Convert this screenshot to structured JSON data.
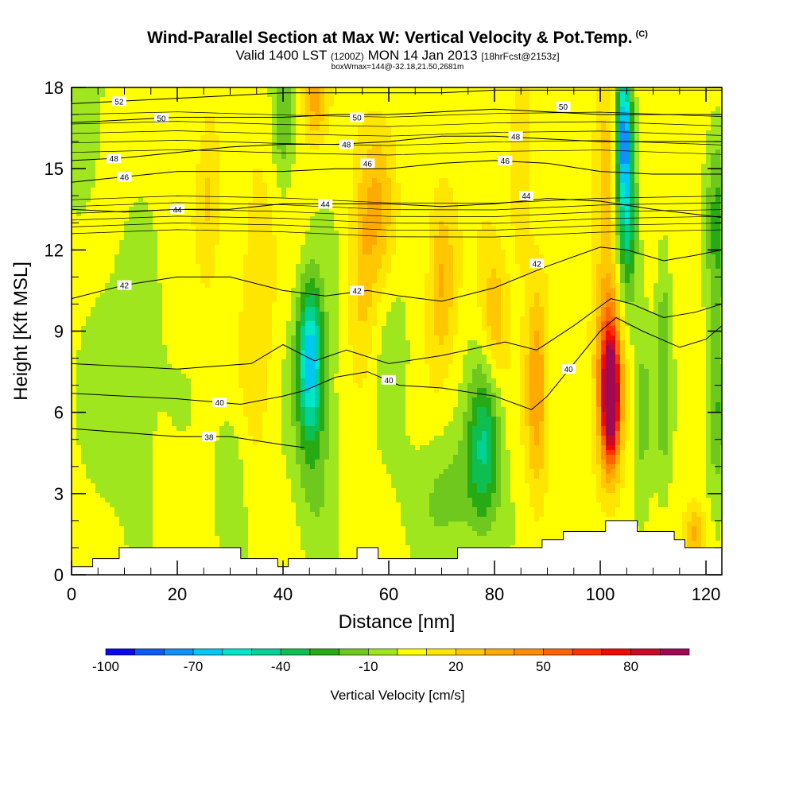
{
  "header": {
    "title": "Wind-Parallel Section at Max W: Vertical Velocity & Pot.Temp.",
    "title_mark": "(C)",
    "subtitle_main_a": "Valid 1400 LST",
    "subtitle_small_a": "(1200Z)",
    "subtitle_main_b": "MON 14 Jan 2013",
    "subtitle_small_b": "[18hrFcst@2153z]",
    "subsubtitle": "boxWmax=144@-32.18,21.50,2681m"
  },
  "chart_data": {
    "type": "heatmap",
    "xlabel": "Distance [nm]",
    "ylabel": "Height [Kft MSL]",
    "xlim": [
      0,
      123
    ],
    "ylim": [
      0,
      18
    ],
    "x_ticks": [
      "0",
      "20",
      "40",
      "60",
      "80",
      "100",
      "120"
    ],
    "y_ticks": [
      "0",
      "3",
      "6",
      "9",
      "12",
      "15",
      "18"
    ],
    "colorbar": {
      "label": "Vertical Velocity [cm/s]",
      "tick_labels": [
        "-100",
        "-70",
        "-40",
        "-10",
        "20",
        "50",
        "80"
      ],
      "levels": [
        -100,
        -90,
        -80,
        -70,
        -60,
        -50,
        -40,
        -30,
        -20,
        -10,
        0,
        10,
        20,
        30,
        40,
        50,
        60,
        70,
        80,
        90,
        100
      ],
      "colors": [
        "#0a0af0",
        "#0f5cf5",
        "#1190f5",
        "#00c8f0",
        "#00e6c8",
        "#00d296",
        "#0fbe50",
        "#28aa14",
        "#6ec81e",
        "#a0e61e",
        "#ffff00",
        "#ffe600",
        "#ffc800",
        "#ffaa00",
        "#ff8c00",
        "#ff6400",
        "#ff3200",
        "#f00a00",
        "#c80a28",
        "#a00a55"
      ]
    },
    "velocity_features": [
      {
        "x": 45,
        "z": 8,
        "sx": 2.2,
        "sz": 2.6,
        "w": -55
      },
      {
        "x": 46,
        "z": 6,
        "sx": 4,
        "sz": 5,
        "w": -25
      },
      {
        "x": 10,
        "z": 7,
        "sx": 8,
        "sz": 5,
        "w": -14
      },
      {
        "x": 30,
        "z": 3.5,
        "sx": 3,
        "sz": 3,
        "w": -14
      },
      {
        "x": 61,
        "z": 8,
        "sx": 3,
        "sz": 3,
        "w": -12
      },
      {
        "x": 78,
        "z": 5,
        "sx": 3,
        "sz": 3,
        "w": -38
      },
      {
        "x": 72,
        "z": 3,
        "sx": 9,
        "sz": 2.5,
        "w": -18
      },
      {
        "x": 104.5,
        "z": 16.5,
        "sx": 1.5,
        "sz": 2.5,
        "w": -75
      },
      {
        "x": 105,
        "z": 13,
        "sx": 1.8,
        "sz": 3,
        "w": -45
      },
      {
        "x": 108,
        "z": 6,
        "sx": 2,
        "sz": 4,
        "w": -18
      },
      {
        "x": 112,
        "z": 8,
        "sx": 1.5,
        "sz": 5,
        "w": -22
      },
      {
        "x": 122,
        "z": 13,
        "sx": 2,
        "sz": 4,
        "w": -25
      },
      {
        "x": 122,
        "z": 6,
        "sx": 2,
        "sz": 3,
        "w": -28
      },
      {
        "x": 40,
        "z": 17,
        "sx": 2,
        "sz": 3,
        "w": -22
      },
      {
        "x": 2,
        "z": 16,
        "sx": 3,
        "sz": 3,
        "w": -14
      },
      {
        "x": 102,
        "z": 6.5,
        "sx": 1.6,
        "sz": 2.2,
        "w": 95
      },
      {
        "x": 101.5,
        "z": 8,
        "sx": 2.5,
        "sz": 4,
        "w": 45
      },
      {
        "x": 88,
        "z": 7,
        "sx": 2,
        "sz": 4,
        "w": 32
      },
      {
        "x": 80,
        "z": 9.5,
        "sx": 2.5,
        "sz": 2.5,
        "w": 24
      },
      {
        "x": 70,
        "z": 11,
        "sx": 2.5,
        "sz": 3,
        "w": 28
      },
      {
        "x": 58,
        "z": 14,
        "sx": 3,
        "sz": 3,
        "w": 22
      },
      {
        "x": 55,
        "z": 11,
        "sx": 2.5,
        "sz": 4,
        "w": 18
      },
      {
        "x": 35,
        "z": 10,
        "sx": 3,
        "sz": 5,
        "w": 15
      },
      {
        "x": 26,
        "z": 14,
        "sx": 2,
        "sz": 3,
        "w": 15
      },
      {
        "x": 46,
        "z": 17.5,
        "sx": 2,
        "sz": 1.5,
        "w": 28
      },
      {
        "x": 101,
        "z": 15,
        "sx": 2,
        "sz": 3,
        "w": 20
      },
      {
        "x": 85,
        "z": 14,
        "sx": 2,
        "sz": 3,
        "w": 16
      },
      {
        "x": 118,
        "z": 1.5,
        "sx": 2,
        "sz": 1,
        "w": 28
      }
    ],
    "theta_contours": [
      {
        "label": "38",
        "label_x": 26,
        "pts": [
          [
            0,
            5.4
          ],
          [
            20,
            5.1
          ],
          [
            30,
            5.1
          ],
          [
            40,
            4.8
          ],
          [
            44,
            4.7
          ]
        ]
      },
      {
        "label": "40",
        "label_x": 28,
        "pts": [
          [
            0,
            6.7
          ],
          [
            20,
            6.5
          ],
          [
            32,
            6.3
          ],
          [
            40,
            6.6
          ],
          [
            44,
            6.8
          ],
          [
            50,
            7.3
          ],
          [
            56,
            7.5
          ],
          [
            62,
            7.0
          ],
          [
            70,
            6.9
          ],
          [
            80,
            6.6
          ],
          [
            87,
            6.1
          ],
          [
            90,
            6.6
          ],
          [
            95,
            7.8
          ],
          [
            100,
            9.0
          ],
          [
            103,
            9.5
          ],
          [
            108,
            9.0
          ],
          [
            115,
            8.4
          ],
          [
            120,
            8.7
          ],
          [
            123,
            9.2
          ]
        ]
      },
      {
        "label": "",
        "label_x": -1,
        "pts": [
          [
            0,
            7.8
          ],
          [
            20,
            7.6
          ],
          [
            34,
            7.8
          ],
          [
            40,
            8.5
          ],
          [
            46,
            7.9
          ],
          [
            52,
            8.3
          ],
          [
            60,
            7.8
          ],
          [
            70,
            8.1
          ],
          [
            82,
            8.6
          ],
          [
            88,
            8.3
          ],
          [
            95,
            9.2
          ],
          [
            102,
            10.2
          ],
          [
            106,
            10.0
          ],
          [
            112,
            9.5
          ],
          [
            118,
            9.7
          ],
          [
            123,
            10.0
          ]
        ]
      },
      {
        "label": "42",
        "label_x": 10,
        "pts": [
          [
            0,
            10.2
          ],
          [
            10,
            10.7
          ],
          [
            20,
            11.0
          ],
          [
            30,
            11.0
          ],
          [
            40,
            10.5
          ],
          [
            48,
            10.3
          ],
          [
            56,
            10.5
          ],
          [
            62,
            10.3
          ],
          [
            70,
            10.1
          ],
          [
            80,
            10.6
          ],
          [
            90,
            11.4
          ],
          [
            100,
            12.1
          ],
          [
            105,
            12.0
          ],
          [
            112,
            11.6
          ],
          [
            118,
            11.8
          ],
          [
            123,
            12.0
          ]
        ]
      },
      {
        "label": "44",
        "label_x": 20,
        "pts": [
          [
            0,
            13.5
          ],
          [
            10,
            13.4
          ],
          [
            20,
            13.5
          ],
          [
            30,
            13.5
          ],
          [
            40,
            13.7
          ],
          [
            50,
            13.7
          ],
          [
            60,
            13.7
          ],
          [
            70,
            13.6
          ],
          [
            80,
            13.7
          ],
          [
            90,
            13.9
          ],
          [
            100,
            13.8
          ],
          [
            110,
            13.5
          ],
          [
            123,
            13.2
          ]
        ]
      },
      {
        "label": "46",
        "label_x": 10,
        "pts": [
          [
            0,
            14.5
          ],
          [
            10,
            14.7
          ],
          [
            20,
            14.9
          ],
          [
            30,
            14.9
          ],
          [
            40,
            14.9
          ],
          [
            50,
            15.0
          ],
          [
            60,
            15.0
          ],
          [
            70,
            15.2
          ],
          [
            80,
            15.3
          ],
          [
            90,
            15.2
          ],
          [
            100,
            14.9
          ],
          [
            110,
            14.8
          ],
          [
            123,
            14.8
          ]
        ]
      },
      {
        "label": "48",
        "label_x": 8,
        "pts": [
          [
            0,
            15.3
          ],
          [
            10,
            15.4
          ],
          [
            20,
            15.6
          ],
          [
            30,
            15.8
          ],
          [
            40,
            15.9
          ],
          [
            50,
            15.9
          ],
          [
            60,
            16.0
          ],
          [
            70,
            16.2
          ],
          [
            80,
            16.2
          ],
          [
            90,
            16.1
          ],
          [
            100,
            16.0
          ],
          [
            110,
            16.0
          ],
          [
            123,
            16.0
          ]
        ]
      },
      {
        "label": "50",
        "label_x": 17,
        "pts": [
          [
            0,
            16.7
          ],
          [
            10,
            16.8
          ],
          [
            20,
            16.9
          ],
          [
            30,
            16.9
          ],
          [
            40,
            16.9
          ],
          [
            50,
            17.0
          ],
          [
            60,
            17.0
          ],
          [
            70,
            17.1
          ],
          [
            80,
            17.2
          ],
          [
            90,
            17.1
          ],
          [
            100,
            17.0
          ],
          [
            110,
            17.0
          ],
          [
            123,
            17.0
          ]
        ]
      },
      {
        "label": "52",
        "label_x": 9,
        "pts": [
          [
            0,
            17.4
          ],
          [
            10,
            17.5
          ],
          [
            20,
            17.6
          ],
          [
            30,
            17.7
          ],
          [
            40,
            17.8
          ],
          [
            50,
            17.8
          ],
          [
            60,
            17.8
          ],
          [
            70,
            17.8
          ],
          [
            80,
            17.9
          ],
          [
            90,
            17.9
          ],
          [
            100,
            17.9
          ],
          [
            110,
            17.9
          ],
          [
            123,
            17.9
          ]
        ]
      }
    ],
    "theta_labels_extra": [
      {
        "label": "42",
        "x": 54,
        "z": 10.5
      },
      {
        "label": "42",
        "x": 88,
        "z": 11.5
      },
      {
        "label": "40",
        "x": 60,
        "z": 7.2
      },
      {
        "label": "40",
        "x": 94,
        "z": 7.6
      },
      {
        "label": "44",
        "x": 48,
        "z": 13.7
      },
      {
        "label": "44",
        "x": 86,
        "z": 14.0
      },
      {
        "label": "46",
        "x": 56,
        "z": 15.2
      },
      {
        "label": "46",
        "x": 82,
        "z": 15.3
      },
      {
        "label": "48",
        "x": 52,
        "z": 15.9
      },
      {
        "label": "48",
        "x": 84,
        "z": 16.2
      },
      {
        "label": "50",
        "x": 54,
        "z": 16.9
      },
      {
        "label": "50",
        "x": 93,
        "z": 17.3
      }
    ],
    "terrain": [
      [
        0,
        0.3
      ],
      [
        4,
        0.3
      ],
      [
        4,
        0.6
      ],
      [
        9,
        0.6
      ],
      [
        9,
        1.0
      ],
      [
        32,
        1.0
      ],
      [
        32,
        0.6
      ],
      [
        39,
        0.6
      ],
      [
        39,
        0.3
      ],
      [
        41,
        0.3
      ],
      [
        41,
        0.6
      ],
      [
        54,
        0.6
      ],
      [
        54,
        1.0
      ],
      [
        58,
        1.0
      ],
      [
        58,
        0.6
      ],
      [
        73,
        0.6
      ],
      [
        73,
        1.0
      ],
      [
        89,
        1.0
      ],
      [
        89,
        1.3
      ],
      [
        93,
        1.3
      ],
      [
        93,
        1.6
      ],
      [
        101,
        1.6
      ],
      [
        101,
        2.0
      ],
      [
        107,
        2.0
      ],
      [
        107,
        1.6
      ],
      [
        114,
        1.6
      ],
      [
        114,
        1.3
      ],
      [
        116,
        1.3
      ],
      [
        116,
        1.0
      ],
      [
        123,
        1.0
      ],
      [
        123,
        0.7
      ]
    ]
  }
}
